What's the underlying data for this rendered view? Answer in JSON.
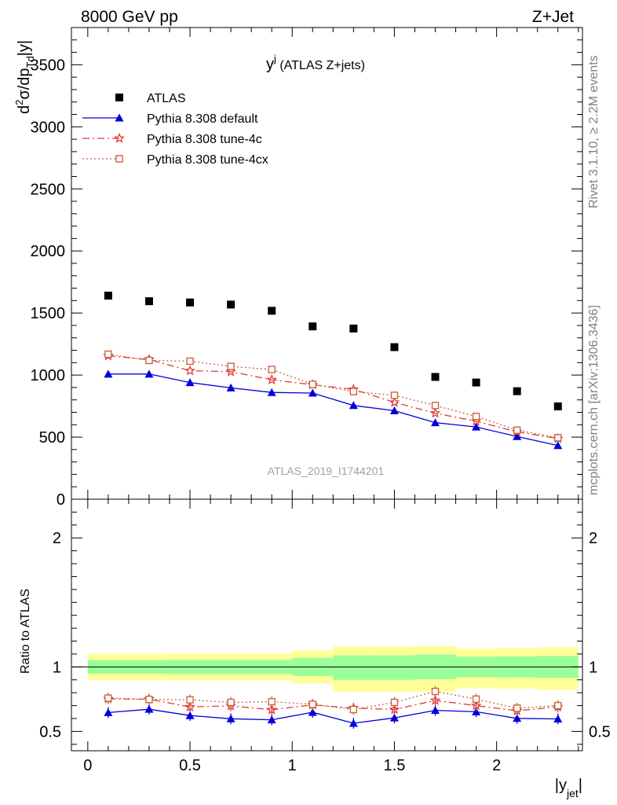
{
  "header": {
    "left": "8000 GeV pp",
    "right": "Z+Jet"
  },
  "side_labels": {
    "rivet": "Rivet 3.1.10, ≥ 2.2M events",
    "mcplots": "mcplots.cern.ch [arXiv:1306.3436]"
  },
  "watermark": "ATLAS_2019_I1744201",
  "chart_data": [
    {
      "type": "scatter",
      "title": "y^j (ATLAS Z+jets)",
      "title_main": "y",
      "title_sup": "j",
      "title_rest": " (ATLAS Z+jets)",
      "ylabel": "d²σ/dp_Td|y|",
      "ylabel_parts": {
        "d": "d",
        "sup2": "2",
        "mid": "σ/dp",
        "sub": "Td",
        "tail": "|y|"
      },
      "xlim": [
        -0.08,
        2.42
      ],
      "ylim": [
        0,
        3800
      ],
      "yticks": [
        0,
        500,
        1000,
        1500,
        2000,
        2500,
        3000,
        3500
      ],
      "ytick_labels": [
        "0",
        "500",
        "1000",
        "1500",
        "2000",
        "2500",
        "3000",
        "3500"
      ],
      "legend_position": "top-left",
      "x": [
        0.1,
        0.3,
        0.5,
        0.7,
        0.9,
        1.1,
        1.3,
        1.5,
        1.7,
        1.9,
        2.1,
        2.3
      ],
      "series": [
        {
          "name": "ATLAS",
          "color": "#000000",
          "marker": "square",
          "values": [
            1640,
            1595,
            1585,
            1568,
            1518,
            1392,
            1375,
            1225,
            985,
            940,
            870,
            748
          ]
        },
        {
          "name": "Pythia 8.308 default",
          "color": "#0000dd",
          "marker": "triangle",
          "line": "solid",
          "values": [
            1008,
            1008,
            940,
            897,
            860,
            855,
            755,
            713,
            617,
            582,
            505,
            432
          ]
        },
        {
          "name": "Pythia 8.308 tune-4c",
          "color": "#e03c3c",
          "marker": "star",
          "line": "dashdot",
          "values": [
            1155,
            1125,
            1035,
            1027,
            962,
            922,
            885,
            780,
            693,
            628,
            543,
            488
          ]
        },
        {
          "name": "Pythia 8.308 tune-4cx",
          "color": "#c8643c",
          "marker": "open-square",
          "line": "dotted",
          "values": [
            1168,
            1118,
            1112,
            1070,
            1045,
            925,
            867,
            837,
            755,
            667,
            556,
            495
          ]
        }
      ]
    },
    {
      "type": "line",
      "ylabel": "Ratio to ATLAS",
      "xlabel": "|y_jet|",
      "xlabel_parts": {
        "main": "|y",
        "sub": "jet",
        "tail": "|"
      },
      "xlim": [
        -0.08,
        2.42
      ],
      "ylim": [
        0.35,
        2.3
      ],
      "xticks": [
        0,
        0.5,
        1,
        1.5,
        2
      ],
      "xtick_labels": [
        "0",
        "0.5",
        "1",
        "1.5",
        "2"
      ],
      "yticks": [
        0.5,
        1,
        2
      ],
      "ytick_labels": [
        "0.5",
        "1",
        "2"
      ],
      "x": [
        0.1,
        0.3,
        0.5,
        0.7,
        0.9,
        1.1,
        1.3,
        1.5,
        1.7,
        1.9,
        2.1,
        2.3
      ],
      "bin_edges": [
        0,
        0.2,
        0.4,
        0.6,
        0.8,
        1.0,
        1.2,
        1.4,
        1.6,
        1.8,
        2.0,
        2.2,
        2.4
      ],
      "bands": [
        {
          "name": "total uncertainty",
          "color": "#ffff99",
          "low": [
            0.898,
            0.898,
            0.895,
            0.895,
            0.895,
            0.872,
            0.808,
            0.808,
            0.808,
            0.835,
            0.832,
            0.822
          ],
          "high": [
            1.102,
            1.102,
            1.105,
            1.105,
            1.105,
            1.128,
            1.157,
            1.157,
            1.162,
            1.142,
            1.145,
            1.152
          ]
        },
        {
          "name": "stat uncertainty",
          "color": "#99ff99",
          "low": [
            0.948,
            0.948,
            0.945,
            0.945,
            0.945,
            0.93,
            0.9,
            0.9,
            0.905,
            0.92,
            0.918,
            0.915
          ],
          "high": [
            1.052,
            1.052,
            1.055,
            1.055,
            1.055,
            1.07,
            1.09,
            1.09,
            1.095,
            1.08,
            1.082,
            1.085
          ]
        }
      ],
      "reference": 1,
      "series": [
        {
          "name": "Pythia 8.308 default",
          "color": "#0000dd",
          "marker": "triangle",
          "line": "solid",
          "values": [
            0.646,
            0.672,
            0.623,
            0.598,
            0.59,
            0.648,
            0.563,
            0.605,
            0.663,
            0.652,
            0.601,
            0.597
          ]
        },
        {
          "name": "Pythia 8.308 tune-4c",
          "color": "#e03c3c",
          "marker": "star",
          "line": "dashdot",
          "values": [
            0.752,
            0.75,
            0.69,
            0.698,
            0.668,
            0.705,
            0.68,
            0.67,
            0.74,
            0.7,
            0.66,
            0.69
          ]
        },
        {
          "name": "Pythia 8.308 tune-4cx",
          "color": "#c8643c",
          "marker": "open-square",
          "line": "dotted",
          "values": [
            0.758,
            0.748,
            0.745,
            0.725,
            0.73,
            0.71,
            0.67,
            0.725,
            0.81,
            0.75,
            0.68,
            0.7
          ]
        }
      ]
    }
  ]
}
